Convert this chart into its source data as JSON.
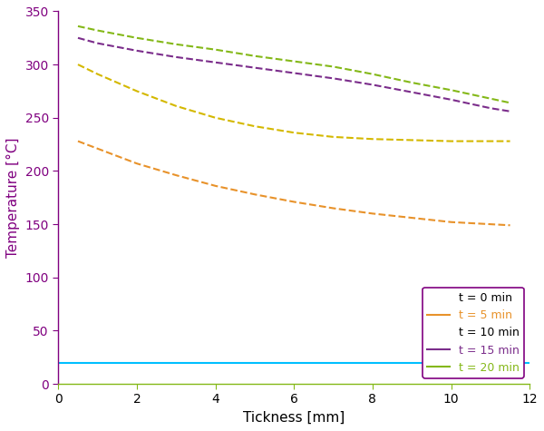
{
  "title": "",
  "xlabel": "Tickness [mm]",
  "ylabel": "Temperature [°C]",
  "xlim": [
    0,
    12
  ],
  "ylim": [
    0,
    350
  ],
  "xticks": [
    0,
    2,
    4,
    6,
    8,
    10,
    12
  ],
  "yticks": [
    0,
    50,
    100,
    150,
    200,
    250,
    300,
    350
  ],
  "series": [
    {
      "label": "t = 0 min",
      "color": "#00BFFF",
      "linestyle": "-",
      "linewidth": 1.5,
      "x": [
        0.0,
        12.0
      ],
      "y": [
        20.0,
        20.0
      ],
      "show_in_legend": true,
      "legend_linestyle": "none"
    },
    {
      "label": "t = 5 min",
      "color": "#E8922A",
      "linestyle": "--",
      "linewidth": 1.5,
      "x": [
        0.5,
        1.0,
        2.0,
        3.0,
        4.0,
        5.0,
        6.0,
        7.0,
        8.0,
        9.0,
        10.0,
        11.0,
        11.5
      ],
      "y": [
        228,
        221,
        207,
        196,
        186,
        178,
        171,
        165,
        160,
        156,
        152,
        150,
        149
      ],
      "show_in_legend": true,
      "legend_linestyle": "-"
    },
    {
      "label": "t = 10 min",
      "color": "#D4B800",
      "linestyle": "--",
      "linewidth": 1.5,
      "x": [
        0.5,
        1.0,
        2.0,
        3.0,
        4.0,
        5.0,
        6.0,
        7.0,
        8.0,
        9.0,
        10.0,
        11.0,
        11.5
      ],
      "y": [
        300,
        291,
        275,
        261,
        250,
        242,
        236,
        232,
        230,
        229,
        228,
        228,
        228
      ],
      "show_in_legend": true,
      "legend_linestyle": "none"
    },
    {
      "label": "t = 15 min",
      "color": "#7B2D8B",
      "linestyle": "--",
      "linewidth": 1.5,
      "x": [
        0.5,
        1.0,
        2.0,
        3.0,
        4.0,
        5.0,
        6.0,
        7.0,
        8.0,
        9.0,
        10.0,
        11.0,
        11.5
      ],
      "y": [
        325,
        320,
        313,
        307,
        302,
        297,
        292,
        287,
        281,
        274,
        267,
        259,
        256
      ],
      "show_in_legend": true,
      "legend_linestyle": "-"
    },
    {
      "label": "t = 20 min",
      "color": "#84B818",
      "linestyle": "--",
      "linewidth": 1.5,
      "x": [
        0.5,
        1.0,
        2.0,
        3.0,
        4.0,
        5.0,
        6.0,
        7.0,
        8.0,
        9.0,
        10.0,
        11.0,
        11.5
      ],
      "y": [
        336,
        332,
        325,
        319,
        314,
        308,
        303,
        298,
        291,
        283,
        276,
        268,
        264
      ],
      "show_in_legend": true,
      "legend_linestyle": "-"
    }
  ],
  "legend_edgecolor": "#800080",
  "legend_loc": "lower right",
  "ylabel_color": "#800080",
  "left_spine_color": "#800080",
  "bottom_spine_color": "#84B818",
  "tick_color": "#800080",
  "background_color": "#ffffff",
  "figsize": [
    6.0,
    4.75
  ],
  "dpi": 100
}
